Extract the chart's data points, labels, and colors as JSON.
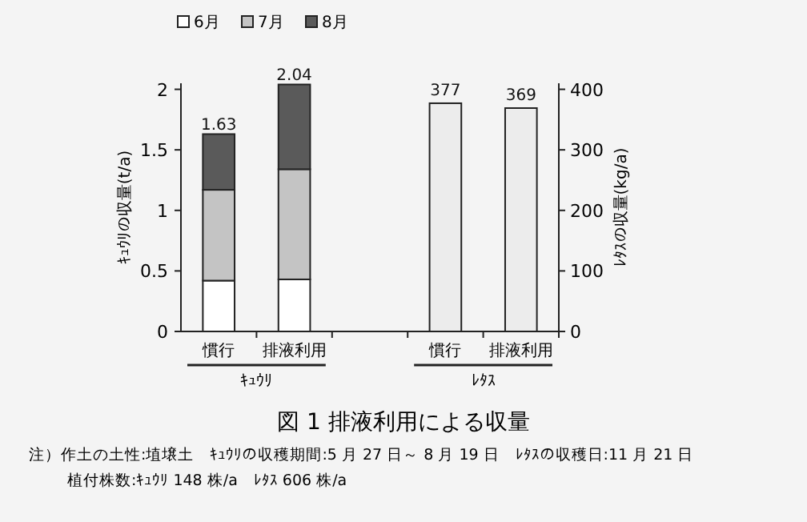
{
  "chart_data": {
    "type": "bar",
    "stacked": true,
    "title": "図 1  排液利用による収量",
    "categories": [
      "慣行",
      "排液利用",
      null,
      "慣行",
      "排液利用"
    ],
    "series": [
      {
        "name": "6月",
        "color": "#ffffff",
        "values": [
          0.42,
          0.43,
          null,
          null,
          null
        ]
      },
      {
        "name": "7月",
        "color": "#c4c4c4",
        "values": [
          0.75,
          0.91,
          null,
          null,
          null
        ]
      },
      {
        "name": "8月",
        "color": "#5a5a5a",
        "values": [
          0.46,
          0.7,
          null,
          null,
          null
        ]
      },
      {
        "color": "#ececec",
        "axis": "y2",
        "values": [
          null,
          null,
          null,
          377,
          369
        ],
        "value_labels": [
          null,
          null,
          null,
          "377",
          "369"
        ]
      }
    ],
    "totals": [
      "1.63",
      "2.04",
      null,
      null,
      null
    ],
    "ylabel": "ｷｭｳﾘの収量(t/a)",
    "y2label": "ﾚﾀｽの収量(kg/a)",
    "ylim": [
      0,
      2.05
    ],
    "yticks": [
      0,
      0.5,
      1,
      1.5,
      2
    ],
    "y2lim": [
      0,
      410
    ],
    "y2ticks": [
      0,
      100,
      200,
      300,
      400
    ],
    "legend": "top left",
    "grid": false,
    "annotations": [
      "ｷｭｳﾘ",
      "ﾚﾀｽ",
      "注）作土の土性:埴壌土　ｷｭｳﾘの収穫期間:5 月 27 日～ 8 月 19 日　ﾚﾀｽの収穫日:11 月 21 日",
      "植付株数:ｷｭｳﾘ 148 株/a　ﾚﾀｽ 606 株/a"
    ]
  }
}
